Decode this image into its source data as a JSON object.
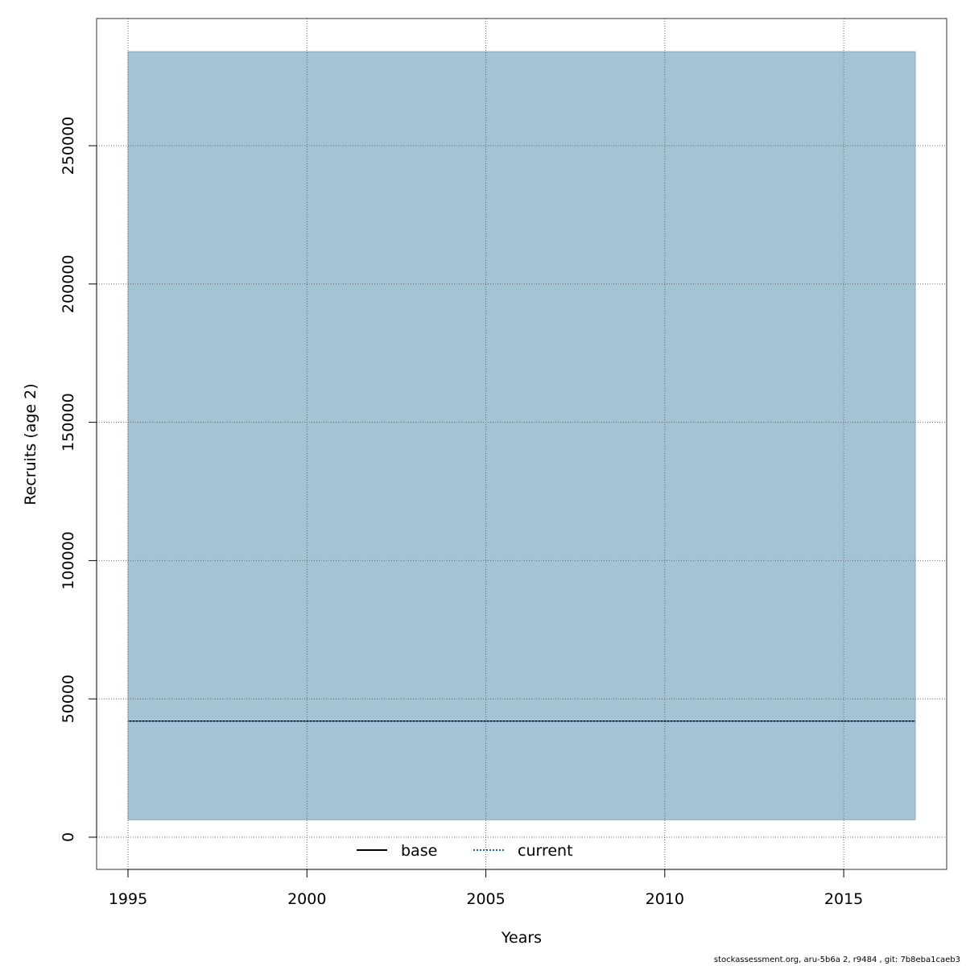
{
  "chart_data": {
    "type": "area",
    "xlabel": "Years",
    "ylabel": "Recruits (age 2)",
    "xlim": [
      1995,
      2017
    ],
    "ylim": [
      0,
      285000
    ],
    "x_ticks": [
      1995,
      2000,
      2005,
      2010,
      2015
    ],
    "y_ticks": [
      0,
      50000,
      100000,
      150000,
      200000,
      250000
    ],
    "x_tick_labels": [
      "1995",
      "2000",
      "2005",
      "2010",
      "2015"
    ],
    "y_tick_labels": [
      "0",
      "50000",
      "100000",
      "150000",
      "200000",
      "250000"
    ],
    "grid": true,
    "legend_position": "bottom-center",
    "series": [
      {
        "name": "base",
        "style": "solid",
        "color": "#000000",
        "x": [
          1995,
          2017
        ],
        "values": [
          42000,
          42000
        ]
      },
      {
        "name": "current",
        "style": "dotted",
        "color": "#1f5fa0",
        "x": [
          1995,
          2017
        ],
        "values": [
          42000,
          42000
        ]
      }
    ],
    "band": {
      "x": [
        1995,
        2017
      ],
      "lower": [
        6300,
        6300
      ],
      "upper": [
        284000,
        284000
      ],
      "color": "#a4c3d5"
    }
  },
  "footer": "stockassessment.org, aru-5b6a  2, r9484 , git: 7b8eba1caeb3"
}
